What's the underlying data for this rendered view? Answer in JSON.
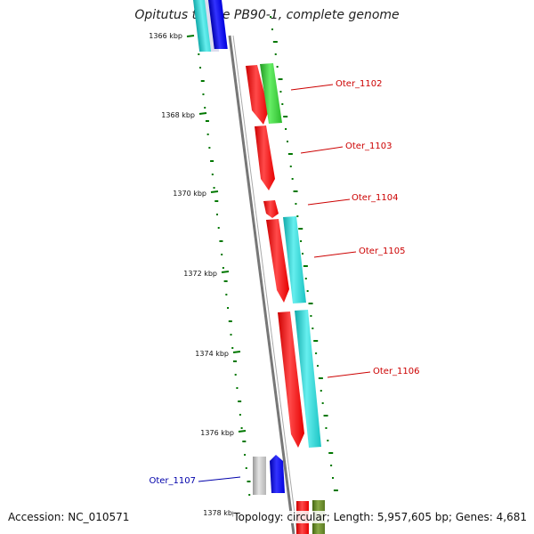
{
  "title": "Opitutus terrae PB90-1, complete genome",
  "footer": {
    "accession": "Accession: NC_010571",
    "summary": "Topology: circular; Length: 5,957,605 bp; Genes: 4,681"
  },
  "ticks": [
    "1366 kbp",
    "1368 kbp",
    "1370 kbp",
    "1372 kbp",
    "1374 kbp",
    "1376 kbp",
    "1378 kbp"
  ],
  "gene_labels": [
    "Oter_1102",
    "Oter_1103",
    "Oter_1104",
    "Oter_1105",
    "Oter_1106",
    "Oter_1107"
  ],
  "colors": {
    "label_red": "#cc0000",
    "label_blue": "#0000aa",
    "gene_red": "#ff1a1a",
    "gene_green": "#33cc33",
    "gene_cyan": "#22cccc",
    "gene_blue": "#0000ee",
    "gene_gray": "#bbbbbb",
    "gene_olive": "#66882a",
    "backbone": "#888888",
    "gc_green": "#007700"
  }
}
